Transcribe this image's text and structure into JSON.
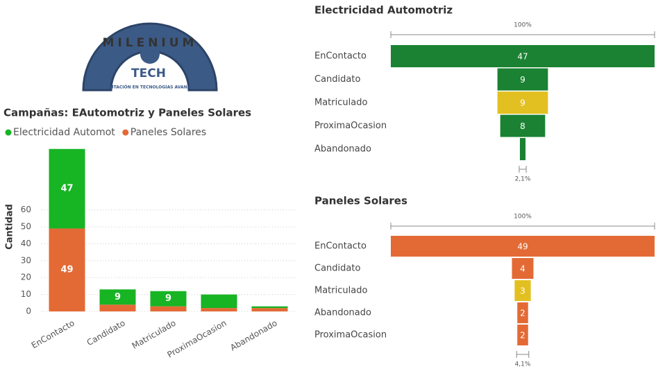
{
  "logo": {
    "name": "MILENIUM",
    "brand": "TECH",
    "tagline": "CAPACITACIÓN EN TECNOLOGÍAS AVANZADAS"
  },
  "chart_data": [
    {
      "type": "stacked-bar",
      "title": "Campañas: EAutomotriz y Paneles Solares",
      "ylabel": "Cantidad",
      "categories": [
        "EnContacto",
        "Candidato",
        "Matriculado",
        "ProximaOcasion",
        "Abandonado"
      ],
      "series": [
        {
          "name": "Paneles Solares",
          "color": "#e36a35",
          "values": [
            49,
            4,
            3,
            2,
            2
          ]
        },
        {
          "name": "Electricidad Automot",
          "color": "#17b424",
          "values": [
            47,
            9,
            9,
            8,
            1
          ]
        }
      ],
      "legend_order": [
        1,
        0
      ],
      "ylim": [
        0,
        100
      ],
      "yticks": [
        0,
        10,
        20,
        30,
        40,
        50,
        60
      ],
      "grid": true
    },
    {
      "type": "funnel",
      "title": "Electricidad Automotriz",
      "categories": [
        "EnContacto",
        "Candidato",
        "Matriculado",
        "ProximaOcasion",
        "Abandonado"
      ],
      "values": [
        47,
        9,
        9,
        8,
        1
      ],
      "colors": [
        "#1a8232",
        "#1a8232",
        "#e3c021",
        "#1a8232",
        "#1a8232"
      ],
      "top_label": "100%",
      "bottom_label": "2,1%"
    },
    {
      "type": "funnel",
      "title": "Paneles Solares",
      "categories": [
        "EnContacto",
        "Candidato",
        "Matriculado",
        "Abandonado",
        "ProximaOcasion"
      ],
      "values": [
        49,
        4,
        3,
        2,
        2
      ],
      "colors": [
        "#e36a35",
        "#e36a35",
        "#e3c021",
        "#e36a35",
        "#e36a35"
      ],
      "top_label": "100%",
      "bottom_label": "4,1%"
    }
  ]
}
